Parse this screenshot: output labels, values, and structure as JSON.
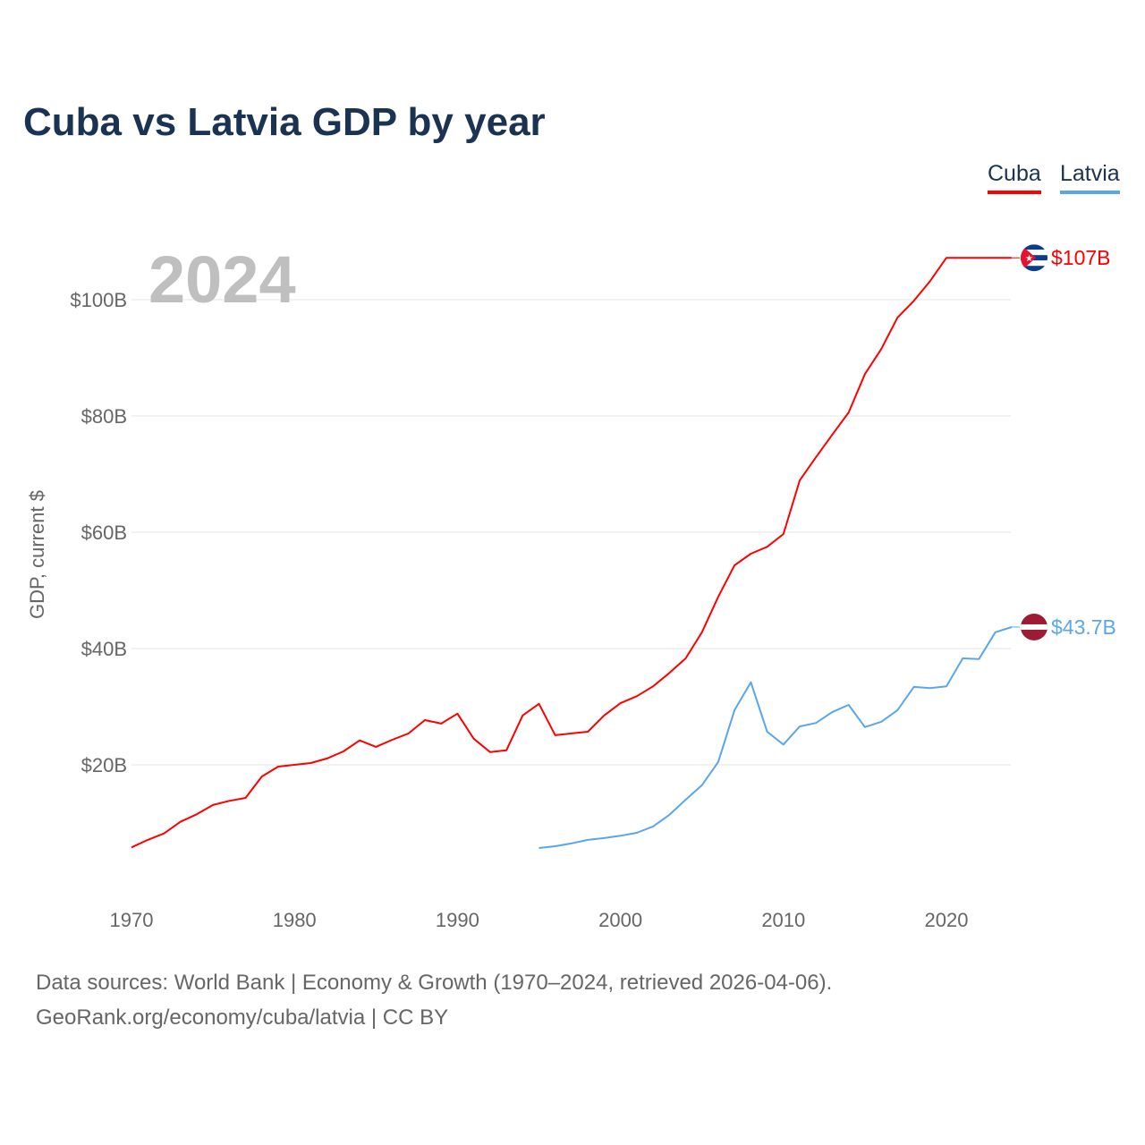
{
  "title": "Cuba vs Latvia GDP by year",
  "year_label": "2024",
  "legend": [
    {
      "label": "Cuba",
      "color": "#ff0000"
    },
    {
      "label": "Latvia",
      "color": "#5aa6ea"
    }
  ],
  "source_line1": "Data sources: World Bank | Economy & Growth (1970–2024, retrieved 2026-04-06).",
  "source_line2": "GeoRank.org/economy/cuba/latvia | CC BY",
  "chart_data": {
    "type": "line",
    "title": "Cuba vs Latvia GDP by year",
    "xlabel": "",
    "ylabel": "GDP, current $",
    "xlim": [
      1970,
      2024
    ],
    "ylim": [
      0,
      110
    ],
    "x_ticks": [
      1970,
      1980,
      1990,
      2000,
      2010,
      2020
    ],
    "x_tick_labels": [
      "1970",
      "1980",
      "1990",
      "2000",
      "2010",
      "2020"
    ],
    "y_ticks": [
      20,
      40,
      60,
      80,
      100
    ],
    "y_tick_labels": [
      "$20B",
      "$40B",
      "$60B",
      "$80B",
      "$100B"
    ],
    "grid": true,
    "legend_position": "top-right",
    "series": [
      {
        "name": "Cuba",
        "color": "#ff0000",
        "end_label": "$107B",
        "x_start": 1970,
        "values": [
          5.8,
          7.1,
          8.2,
          10.2,
          11.5,
          13.1,
          13.8,
          14.3,
          18.0,
          19.7,
          20.0,
          20.3,
          21.1,
          22.3,
          24.2,
          23.1,
          24.3,
          25.4,
          27.7,
          27.1,
          28.8,
          24.5,
          22.2,
          22.5,
          28.5,
          30.5,
          25.1,
          25.4,
          25.7,
          28.5,
          30.6,
          31.8,
          33.5,
          35.8,
          38.3,
          42.8,
          48.9,
          54.3,
          56.3,
          57.5,
          59.7,
          68.9,
          72.9,
          76.8,
          80.6,
          87.2,
          91.5,
          96.9,
          99.8,
          103.2,
          107.2,
          107.2,
          107.2,
          107.2,
          107.2
        ]
      },
      {
        "name": "Latvia",
        "color": "#5aa6ea",
        "end_label": "$43.7B",
        "x_start": 1995,
        "values": [
          5.7,
          6.0,
          6.5,
          7.1,
          7.4,
          7.8,
          8.3,
          9.4,
          11.4,
          14.0,
          16.5,
          20.5,
          29.4,
          34.2,
          25.7,
          23.5,
          26.6,
          27.2,
          29.1,
          30.3,
          26.5,
          27.4,
          29.4,
          33.4,
          33.2,
          33.5,
          38.3,
          38.2,
          42.8,
          43.7
        ]
      }
    ]
  }
}
